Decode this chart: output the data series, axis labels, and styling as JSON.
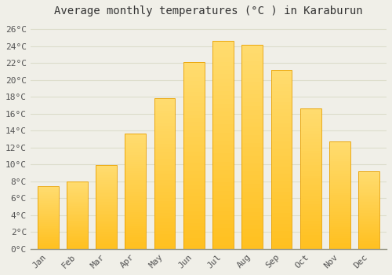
{
  "title": "Average monthly temperatures (°C ) in Karaburun",
  "months": [
    "Jan",
    "Feb",
    "Mar",
    "Apr",
    "May",
    "Jun",
    "Jul",
    "Aug",
    "Sep",
    "Oct",
    "Nov",
    "Dec"
  ],
  "values": [
    7.4,
    8.0,
    9.9,
    13.6,
    17.8,
    22.1,
    24.6,
    24.1,
    21.2,
    16.6,
    12.7,
    9.2
  ],
  "bar_color_bottom": "#FFC020",
  "bar_color_top": "#FFD878",
  "bar_edge_color": "#E8A000",
  "background_color": "#F0EFE8",
  "plot_bg_color": "#F0EFE8",
  "grid_color": "#DDDDCC",
  "ylim": [
    0,
    27
  ],
  "ytick_step": 2,
  "title_fontsize": 10,
  "tick_fontsize": 8,
  "font_family": "monospace",
  "title_color": "#333333",
  "tick_color": "#555555"
}
